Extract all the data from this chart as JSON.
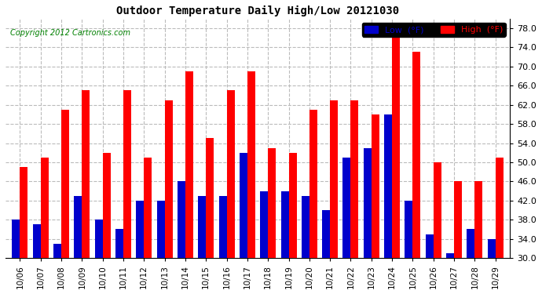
{
  "title": "Outdoor Temperature Daily High/Low 20121030",
  "copyright": "Copyright 2012 Cartronics.com",
  "dates": [
    "10/06",
    "10/07",
    "10/08",
    "10/09",
    "10/10",
    "10/11",
    "10/12",
    "10/13",
    "10/14",
    "10/15",
    "10/16",
    "10/17",
    "10/18",
    "10/19",
    "10/20",
    "10/21",
    "10/22",
    "10/23",
    "10/24",
    "10/25",
    "10/26",
    "10/27",
    "10/28",
    "10/29"
  ],
  "highs": [
    49.0,
    51.0,
    61.0,
    65.0,
    52.0,
    65.0,
    51.0,
    63.0,
    69.0,
    55.0,
    65.0,
    69.0,
    53.0,
    52.0,
    61.0,
    63.0,
    63.0,
    60.0,
    79.0,
    73.0,
    50.0,
    46.0,
    46.0,
    51.0
  ],
  "lows": [
    38.0,
    37.0,
    33.0,
    43.0,
    38.0,
    36.0,
    42.0,
    42.0,
    46.0,
    43.0,
    43.0,
    52.0,
    44.0,
    44.0,
    43.0,
    40.0,
    51.0,
    53.0,
    60.0,
    42.0,
    35.0,
    31.0,
    36.0,
    34.0
  ],
  "high_color": "#ff0000",
  "low_color": "#0000cc",
  "background_color": "#ffffff",
  "grid_color": "#bbbbbb",
  "ylim_min": 30.0,
  "ylim_max": 80.0,
  "yticks": [
    30.0,
    34.0,
    38.0,
    42.0,
    46.0,
    50.0,
    54.0,
    58.0,
    62.0,
    66.0,
    70.0,
    74.0,
    78.0
  ],
  "legend_low_label": "Low  (°F)",
  "legend_high_label": "High  (°F)"
}
